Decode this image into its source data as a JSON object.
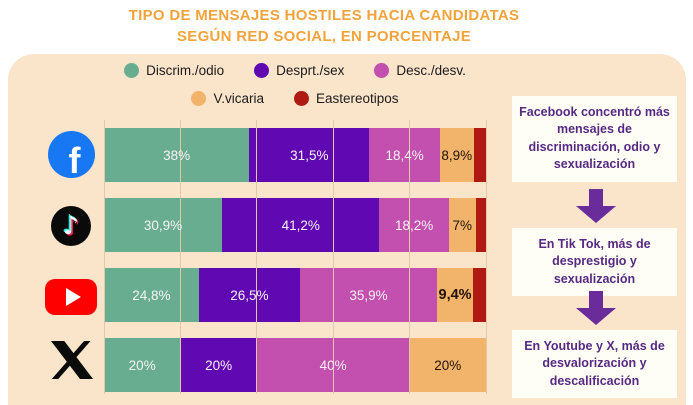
{
  "title": {
    "line1": "TIPO DE MENSAJES HOSTILES HACIA CANDIDATAS",
    "line2": "SEGÚN RED SOCIAL, EN PORCENTAJE"
  },
  "colors": {
    "page-bg": "#FFFFFF",
    "panel-bg": "#FAE4CA",
    "title": "#F2A33C",
    "gridline": "#E2C8A9",
    "legend-text": "#1C1C1C",
    "annotation-bg": "#FFFEF6",
    "annotation-text": "#562A83",
    "arrow": "#6A2C9B"
  },
  "platforms": [
    {
      "label": "Facebook",
      "color": "#1877F2"
    },
    {
      "label": "TikTok",
      "color": "#0A0A0A"
    },
    {
      "label": "YouTube",
      "color": "#FF0000"
    },
    {
      "label": "X",
      "color": "#0F0F0F"
    }
  ],
  "legend_rows": [
    [
      0,
      1,
      2
    ],
    [
      3,
      4
    ]
  ],
  "chart_data": {
    "type": "bar",
    "orientation": "horizontal",
    "stacked": true,
    "title": "Tipo de mensajes hostiles hacia candidatas según red social, en porcentaje",
    "categories": [
      "Facebook",
      "TikTok",
      "YouTube",
      "X"
    ],
    "xlim": [
      0,
      100
    ],
    "gridlines": [
      0,
      20,
      40,
      60,
      80,
      100
    ],
    "legend_position": "top",
    "series": [
      {
        "name": "Discrim./odio",
        "color": "#68AD90",
        "label_color": "#F8F2F5",
        "values": [
          38,
          30.9,
          24.8,
          20
        ],
        "labels": [
          "38%",
          "30,9%",
          "24,8%",
          "20%"
        ]
      },
      {
        "name": "Desprt./sex",
        "color": "#6009B2",
        "label_color": "#F8F2F5",
        "values": [
          31.5,
          41.2,
          26.5,
          20
        ],
        "labels": [
          "31,5%",
          "41,2%",
          "26,5%",
          "20%"
        ]
      },
      {
        "name": "Desc./desv.",
        "color": "#C34FAE",
        "label_color": "#F8F2F5",
        "values": [
          18.4,
          18.2,
          35.9,
          40
        ],
        "labels": [
          "18,4%",
          "18,2%",
          "35,9%",
          "40%"
        ]
      },
      {
        "name": "V.vicaria",
        "color": "#F2B36A",
        "label_color": "#241309",
        "values": [
          8.9,
          7,
          9.4,
          20
        ],
        "labels": [
          "8,9%",
          "7%",
          "9,4%",
          "20%"
        ]
      },
      {
        "name": "Eastereotipos",
        "color": "#AF1A12",
        "label_color": "#FFFFFF",
        "values": [
          3.2,
          2.7,
          3.4,
          0
        ],
        "labels": [
          "",
          "",
          "",
          ""
        ]
      }
    ],
    "emphasis": {
      "series_index": 3,
      "category_index": 2
    }
  },
  "annotations": {
    "box1": "Facebook concentró más mensajes de discriminación, odio y sexualización",
    "box2": "En Tik Tok, más de desprestigio y sexualización",
    "box3": "En Youtube y X, más de desvalorización y descalificación"
  }
}
